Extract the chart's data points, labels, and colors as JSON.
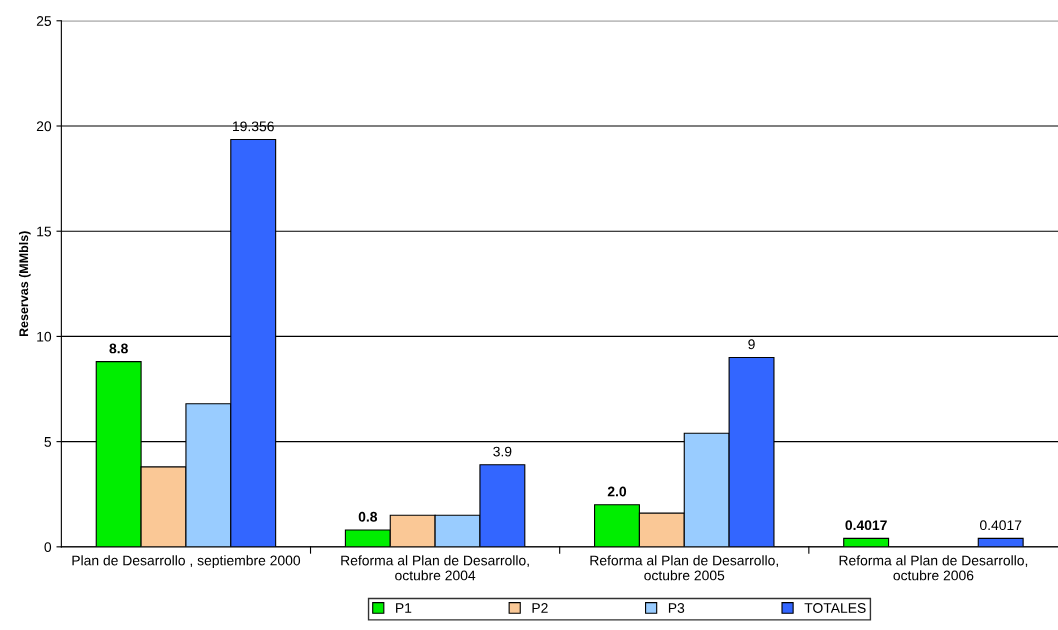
{
  "chart_data": {
    "type": "bar",
    "ylabel": "Reservas (MMbls)",
    "categories": [
      "Plan de Desarrollo , septiembre 2000",
      "Reforma al Plan de Desarrollo,\noctubre 2004",
      "Reforma al Plan de Desarrollo,\noctubre 2005",
      "Reforma al Plan de Desarrollo,\noctubre 2006"
    ],
    "series": [
      {
        "name": "P1",
        "color": "#00ee00",
        "values": [
          8.8,
          0.8,
          2.0,
          0.4017
        ],
        "value_labels": [
          "8.8",
          "0.8",
          "2.0",
          "0.4017"
        ]
      },
      {
        "name": "P2",
        "color": "#fac896",
        "values": [
          3.8,
          1.5,
          1.6,
          null
        ]
      },
      {
        "name": "P3",
        "color": "#99ccff",
        "values": [
          6.8,
          1.5,
          5.4,
          null
        ]
      },
      {
        "name": "TOTALES",
        "color": "#3366ff",
        "values": [
          19.356,
          3.9,
          9,
          0.4017
        ],
        "value_labels": [
          "19.356",
          "3.9",
          "9",
          "0.4017"
        ]
      }
    ],
    "ylim": [
      0,
      25
    ],
    "yticks": [
      0,
      5,
      10,
      15,
      20,
      25
    ],
    "grid": "y",
    "legend": "bottom"
  }
}
